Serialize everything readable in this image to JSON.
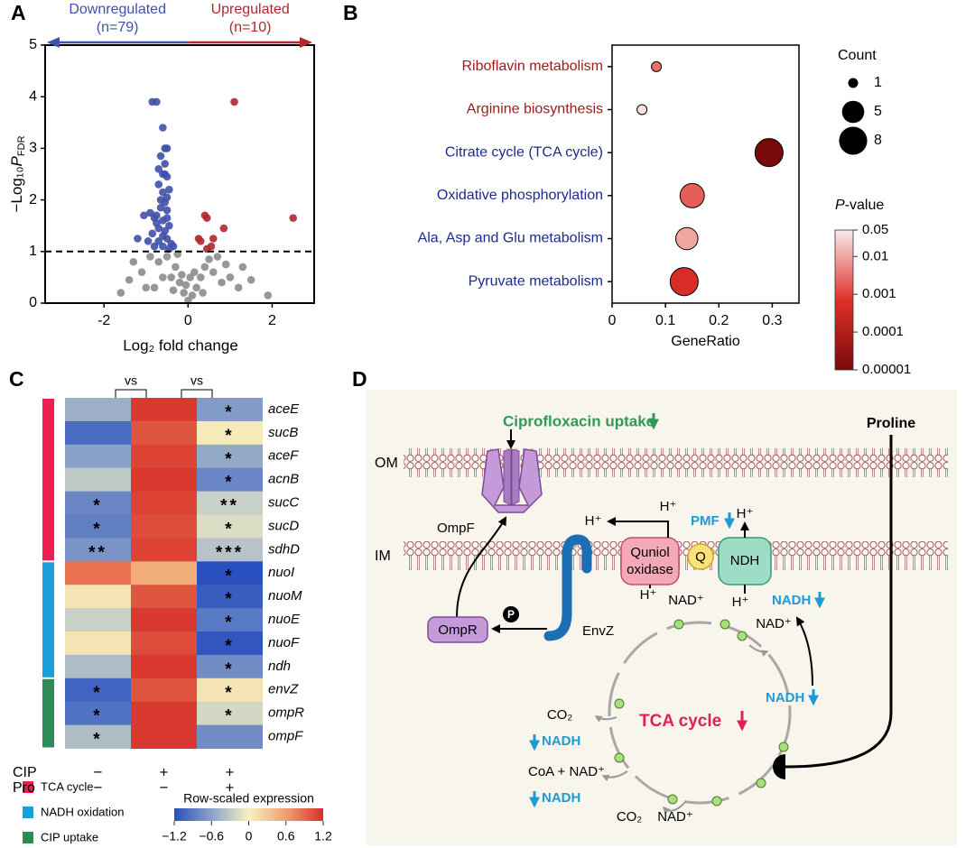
{
  "panel_labels": [
    "A",
    "B",
    "C",
    "D"
  ],
  "chart_data": [
    {
      "type": "scatter",
      "x_label": "Log₂ fold change",
      "y_label": {
        "prefix": "−Log₁₀",
        "italic": "P",
        "subscript": "FDR"
      },
      "xlim": [
        -3.4,
        3
      ],
      "xticks": [
        -2,
        0,
        2
      ],
      "ylim": [
        0,
        5
      ],
      "yticks": [
        0,
        1,
        2,
        3,
        4,
        5
      ],
      "threshold": 1,
      "series": [
        {
          "color": "#8c8c8c",
          "x": [
            -1.3,
            -1.1,
            -0.9,
            -0.7,
            -0.5,
            -0.3,
            -0.2,
            -0.1,
            0,
            0.1,
            0.2,
            0.3,
            0.4,
            0.6,
            0.8,
            1.0,
            1.2,
            1.5,
            1.9,
            -1.6,
            -0.4,
            -0.6,
            -0.8,
            0.5,
            0.7,
            -0.25,
            -1.0,
            0.15,
            -0.15,
            1.3,
            -0.05,
            0.05,
            0.9,
            -1.4,
            0.35,
            -0.35
          ],
          "values": [
            0.8,
            0.6,
            0.9,
            0.8,
            0.9,
            0.7,
            0.4,
            0.2,
            0.05,
            0.15,
            0.3,
            0.5,
            0.7,
            0.6,
            0.4,
            0.5,
            0.3,
            0.45,
            0.15,
            0.2,
            0.5,
            0.5,
            0.3,
            0.85,
            0.9,
            0.95,
            0.3,
            0.6,
            0.55,
            0.7,
            0.35,
            0.5,
            0.75,
            0.45,
            0.2,
            0.25
          ]
        },
        {
          "name": "Downregulated",
          "count_label": "(n=79)",
          "color": "#3f51a8",
          "arrow": "left",
          "x": [
            -0.85,
            -0.75,
            -0.6,
            -0.55,
            -0.5,
            -0.65,
            -0.6,
            -0.55,
            -0.5,
            -0.7,
            -0.45,
            -0.6,
            -0.5,
            -0.9,
            -1.05,
            -0.8,
            -0.55,
            -0.65,
            -0.5,
            -0.6,
            -0.75,
            -0.45,
            -0.7,
            -0.55,
            -0.85,
            -0.6,
            -0.5,
            -0.95,
            -0.7,
            -0.4,
            -0.8,
            -0.6,
            -0.45,
            -1.2,
            -0.75,
            -0.65,
            -0.55,
            -0.7,
            -0.5,
            -0.35
          ],
          "values": [
            3.9,
            3.9,
            3.4,
            3.0,
            3.0,
            2.85,
            2.5,
            2.5,
            2.45,
            2.3,
            2.2,
            2.15,
            2.05,
            1.75,
            1.7,
            1.65,
            1.95,
            1.85,
            1.8,
            1.6,
            1.55,
            1.5,
            1.45,
            1.4,
            1.35,
            1.3,
            1.25,
            1.2,
            1.2,
            1.15,
            1.1,
            1.1,
            1.05,
            1.25,
            1.7,
            2.0,
            2.7,
            2.6,
            1.65,
            1.1
          ]
        },
        {
          "name": "Upregulated",
          "count_label": "(n=10)",
          "color": "#b0282e",
          "arrow": "right",
          "x": [
            1.1,
            2.5,
            0.4,
            0.45,
            0.85,
            0.25,
            0.3,
            0.55,
            0.45,
            0.6
          ],
          "values": [
            3.9,
            1.65,
            1.7,
            1.65,
            1.45,
            1.25,
            1.2,
            1.1,
            1.05,
            1.25
          ]
        }
      ]
    },
    {
      "type": "bubble",
      "x_label": "GeneRatio",
      "categories": [
        "Riboflavin metabolism",
        "Arginine biosynthesis",
        "Citrate cycle (TCA cycle)",
        "Oxidative phosphorylation",
        "Ala, Asp and Glu metabolism",
        "Pyruvate metabolism"
      ],
      "label_colors": [
        "#9b1c1c",
        "#9b1c1c",
        "#1f2a8c",
        "#1f2a8c",
        "#1f2a8c",
        "#1f2a8c"
      ],
      "values": [
        0.083,
        0.056,
        0.294,
        0.15,
        0.14,
        0.135
      ],
      "sizes": [
        1,
        1,
        8,
        6,
        5,
        8
      ],
      "pvalues": [
        0.003,
        0.04,
        1e-05,
        0.002,
        0.01,
        0.0005
      ],
      "xlim": [
        0,
        0.35
      ],
      "xticks": [
        0,
        0.1,
        0.2,
        0.3
      ],
      "size_legend": {
        "title": "Count",
        "values": [
          1,
          5,
          8
        ]
      },
      "colorbar": {
        "title": [
          "P",
          "-value"
        ],
        "log": true,
        "lim": [
          1e-05,
          0.05
        ],
        "ticks": [
          0.05,
          0.01,
          0.001,
          0.0001,
          {
            "value": 1e-05,
            "label": "0.00001"
          }
        ],
        "colors": [
          "#7a0a0a",
          "#e0302a",
          "#f9ecea"
        ]
      }
    },
    {
      "type": "heatmap",
      "groups": [
        {
          "name": "TCA cycle",
          "color": "#ee1d52",
          "genes": [
            "aceE",
            "sucB",
            "aceF",
            "acnB",
            "sucC",
            "sucD",
            "sdhD"
          ]
        },
        {
          "name": "NADH oxidation",
          "color": "#1aa0d8",
          "genes": [
            "nuoI",
            "nuoM",
            "nuoE",
            "nuoF",
            "ndh"
          ]
        },
        {
          "name": "CIP uptake",
          "color": "#2e8b57",
          "genes": [
            "envZ",
            "ompR",
            "ompF"
          ]
        }
      ],
      "values": [
        [
          -0.5,
          1.15,
          -0.65
        ],
        [
          -1.0,
          1.0,
          0.05
        ],
        [
          -0.6,
          1.1,
          -0.55
        ],
        [
          -0.3,
          1.15,
          -0.8
        ],
        [
          -0.8,
          1.1,
          -0.25
        ],
        [
          -0.85,
          1.05,
          -0.15
        ],
        [
          -0.7,
          1.1,
          -0.35
        ],
        [
          0.85,
          0.5,
          -1.2
        ],
        [
          0.1,
          1.0,
          -1.1
        ],
        [
          -0.25,
          1.15,
          -0.9
        ],
        [
          0.1,
          1.05,
          -1.15
        ],
        [
          -0.4,
          1.15,
          -0.75
        ],
        [
          -1.05,
          1.0,
          0.1
        ],
        [
          -0.95,
          1.15,
          -0.2
        ],
        [
          -0.4,
          1.15,
          -0.75
        ]
      ],
      "annotations": [
        [
          null,
          null,
          "*"
        ],
        [
          null,
          null,
          "*"
        ],
        [
          null,
          null,
          "*"
        ],
        [
          null,
          null,
          "*"
        ],
        [
          "*",
          null,
          "**"
        ],
        [
          "*",
          null,
          "*"
        ],
        [
          "**",
          null,
          "***"
        ],
        [
          null,
          null,
          "*"
        ],
        [
          null,
          null,
          "*"
        ],
        [
          null,
          null,
          "*"
        ],
        [
          null,
          null,
          "*"
        ],
        [
          null,
          null,
          "*"
        ],
        [
          "*",
          null,
          "*"
        ],
        [
          "*",
          null,
          "*"
        ],
        [
          "*",
          null,
          null
        ]
      ],
      "comparisons": [
        "vs",
        "vs"
      ],
      "conditions": [
        {
          "name": "CIP",
          "values": [
            "−",
            "+",
            "+"
          ]
        },
        {
          "name": "Pro",
          "values": [
            "−",
            "−",
            "+"
          ]
        }
      ],
      "colorbar": {
        "title": "Row-scaled expression",
        "lim": [
          -1.2,
          1.2
        ],
        "ticks": [
          {
            "value": -1.2,
            "label": "−1.2"
          },
          {
            "value": -0.6,
            "label": "−0.6"
          },
          0,
          0.6,
          1.2
        ],
        "colors": [
          "#2a4fbf",
          "#8aa2c8",
          "#f6f1c2",
          "#f1a06c",
          "#d8302a"
        ]
      }
    }
  ],
  "diagram": {
    "om": "OM",
    "im": "IM",
    "cipro": "Ciprofloxacin uptake",
    "ompf": "OmpF",
    "ompr": "OmpR",
    "envz": "EnvZ",
    "phospho": "P",
    "quinol": [
      "Quniol",
      "oxidase"
    ],
    "q": "Q",
    "ndh": "NDH",
    "pmf": "PMF",
    "proline": "Proline",
    "tca": "TCA cycle",
    "h_plus": [
      "H⁺",
      "H⁺",
      "H⁺",
      "H⁺",
      "H⁺"
    ],
    "nad_plus": [
      "NAD⁺",
      "NAD⁺",
      "NAD⁺"
    ],
    "nadh": [
      "NADH",
      "NADH",
      "NADH",
      "NADH"
    ],
    "co2": [
      "CO₂",
      "CO₂"
    ],
    "coa": "CoA + NAD⁺"
  }
}
